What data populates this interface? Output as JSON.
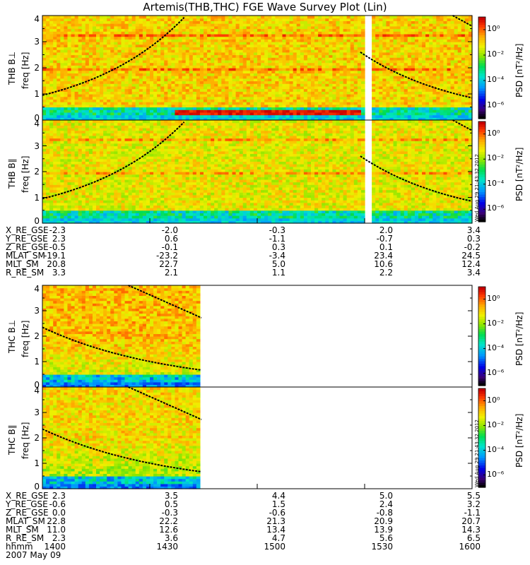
{
  "chart_data": {
    "type": "heatmap",
    "title": "Artemis(THB,THC) FGE Wave Survey Plot (Lin)",
    "colorbar": {
      "label": "PSD [nT²/Hz]",
      "scale": "log",
      "ticks": [
        "10⁰",
        "10⁻²",
        "10⁻⁴",
        "10⁻⁶"
      ],
      "range": [
        -7,
        1
      ]
    },
    "stamp": "Wed Aug 29 21:43:32 2012",
    "panels": [
      {
        "id": "thb-bperp",
        "ylabel": "THB B⊥",
        "ysublabel": "freq [Hz]",
        "ylim": [
          0,
          4
        ],
        "yticks": [
          "0",
          "1",
          "2",
          "3",
          "4"
        ],
        "data_end_frac": 1.0,
        "gap": [
          0.745,
          0.76
        ],
        "strong_band": true
      },
      {
        "id": "thb-bpar",
        "ylabel": "THB B∥",
        "ysublabel": "freq [Hz]",
        "ylim": [
          0,
          4
        ],
        "yticks": [
          "0",
          "1",
          "2",
          "3",
          "4"
        ],
        "data_end_frac": 1.0,
        "gap": [
          0.745,
          0.76
        ],
        "strong_band": false
      },
      {
        "id": "thc-bperp",
        "ylabel": "THC B⊥",
        "ysublabel": "freq [Hz]",
        "ylim": [
          0,
          4
        ],
        "yticks": [
          "0",
          "1",
          "2",
          "3",
          "4"
        ],
        "data_end_frac": 0.37,
        "gap": null,
        "strong_band": false
      },
      {
        "id": "thc-bpar",
        "ylabel": "THC B∥",
        "ysublabel": "freq [Hz]",
        "ylim": [
          0,
          4
        ],
        "yticks": [
          "0",
          "1",
          "2",
          "3",
          "4"
        ],
        "data_end_frac": 0.37,
        "gap": null,
        "strong_band": false
      }
    ],
    "ephemeris_thb": {
      "labels": [
        "X_RE_GSE",
        "Y_RE_GSE",
        "Z_RE_GSE",
        "MLAT_SM",
        "MLT_SM",
        "R_RE_SM"
      ],
      "columns": [
        [
          "-2.3",
          "2.3",
          "-0.5",
          "-19.1",
          "20.8",
          "3.3"
        ],
        [
          "-2.0",
          "0.6",
          "-0.1",
          "-23.2",
          "22.7",
          "2.1"
        ],
        [
          "-0.3",
          "-1.1",
          "0.3",
          "-3.4",
          "5.0",
          "1.1"
        ],
        [
          "2.0",
          "-0.7",
          "0.1",
          "23.4",
          "10.6",
          "2.2"
        ],
        [
          "3.4",
          "0.3",
          "-0.2",
          "24.5",
          "12.4",
          "3.4"
        ]
      ]
    },
    "ephemeris_thc": {
      "labels": [
        "X_RE_GSE",
        "Y_RE_GSE",
        "Z_RE_GSE",
        "MLAT_SM",
        "MLT_SM",
        "R_RE_SM",
        "hhmm"
      ],
      "columns": [
        [
          "2.3",
          "-0.6",
          "0.0",
          "22.8",
          "11.0",
          "2.3",
          "1400"
        ],
        [
          "3.5",
          "0.5",
          "-0.3",
          "22.2",
          "12.6",
          "3.6",
          "1430"
        ],
        [
          "4.4",
          "1.5",
          "-0.6",
          "21.3",
          "13.4",
          "4.7",
          "1500"
        ],
        [
          "5.0",
          "2.4",
          "-0.8",
          "20.9",
          "13.9",
          "5.6",
          "1530"
        ],
        [
          "5.5",
          "3.2",
          "-1.1",
          "20.7",
          "14.3",
          "6.5",
          "1600"
        ]
      ]
    },
    "date": "2007 May 09"
  }
}
